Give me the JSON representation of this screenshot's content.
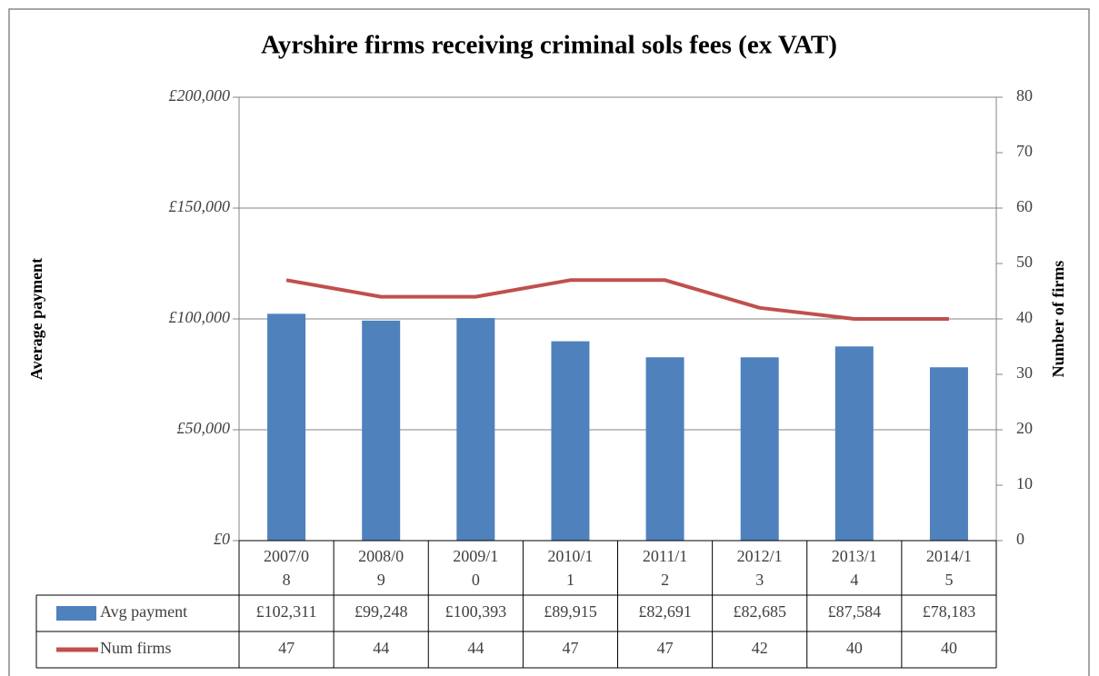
{
  "chart_data": {
    "type": "bar",
    "title": "Ayrshire firms receiving criminal sols fees (ex VAT)",
    "y_label": "Average payment",
    "y2_label": "Number of firms",
    "categories": [
      "2007/08",
      "2008/09",
      "2009/10",
      "2010/11",
      "2011/12",
      "2012/13",
      "2013/14",
      "2014/15"
    ],
    "series": [
      {
        "name": "Avg payment",
        "type": "bar",
        "color": "#4f81bd",
        "values": [
          102311,
          99248,
          100393,
          89915,
          82691,
          82685,
          87584,
          78183
        ],
        "value_labels": [
          "£102,311",
          "£99,248",
          "£100,393",
          "£89,915",
          "£82,691",
          "£82,685",
          "£87,584",
          "£78,183"
        ]
      },
      {
        "name": "Num firms",
        "type": "line",
        "color": "#c0504d",
        "axis": "y2",
        "values": [
          47,
          44,
          44,
          47,
          47,
          42,
          40,
          40
        ]
      }
    ],
    "ylim": [
      0,
      200000
    ],
    "yticks": [
      {
        "value": 0,
        "label": "£0"
      },
      {
        "value": 50000,
        "label": "£50,000"
      },
      {
        "value": 100000,
        "label": "£100,000"
      },
      {
        "value": 150000,
        "label": "£150,000"
      },
      {
        "value": 200000,
        "label": "£200,000"
      }
    ],
    "y2lim": [
      0,
      80
    ],
    "y2ticks": [
      0,
      10,
      20,
      30,
      40,
      50,
      60,
      70,
      80
    ],
    "grid": true
  }
}
